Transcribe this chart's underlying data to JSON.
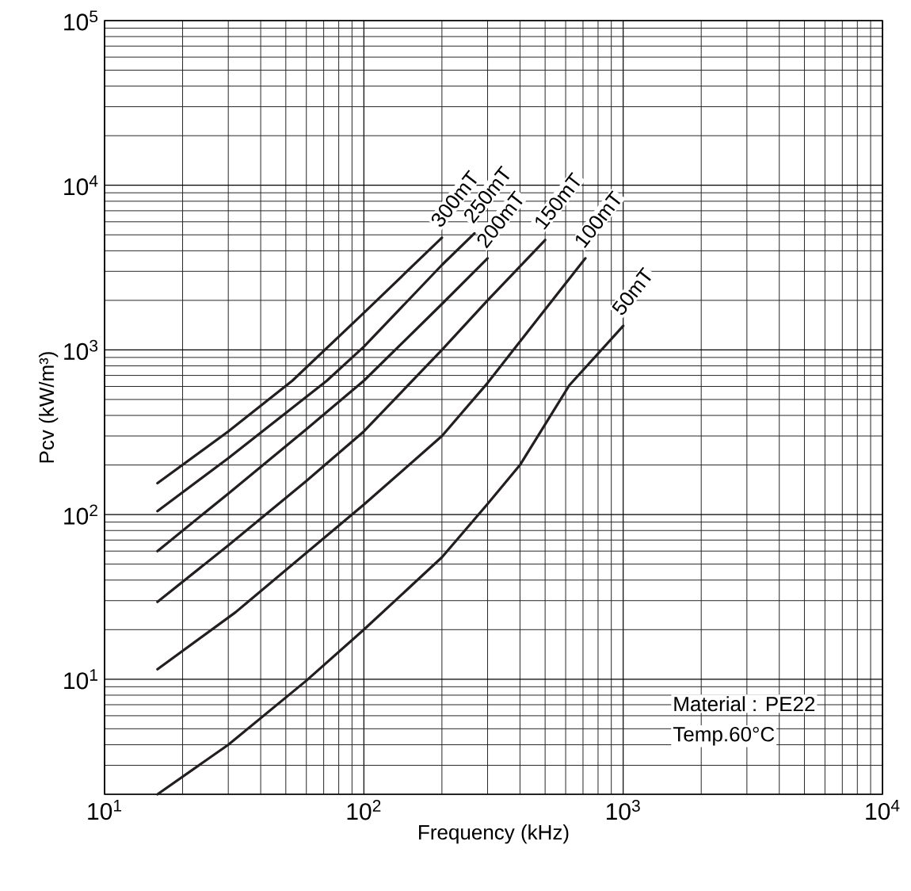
{
  "chart_data": {
    "type": "line",
    "xlabel": "Frequency (kHz)",
    "ylabel": "Pcv (kW/m³)",
    "log": "xy",
    "grid": true,
    "marker": "none",
    "line_style": "solid",
    "xlim": [
      10,
      10000
    ],
    "ylim": [
      2,
      100000
    ],
    "xticks": [
      {
        "value": 10,
        "label": "10$^{1}$"
      },
      {
        "value": 100,
        "label": "10$^{2}$"
      },
      {
        "value": 1000,
        "label": "10$^{3}$"
      },
      {
        "value": 10000,
        "label": "10$^{4}$"
      }
    ],
    "yticks": [
      {
        "value": 10,
        "label": "10$^{1}$"
      },
      {
        "value": 100,
        "label": "10$^{2}$"
      },
      {
        "value": 1000,
        "label": "10$^{3}$"
      },
      {
        "value": 10000,
        "label": "10$^{4}$"
      },
      {
        "value": 100000,
        "label": "10$^{5}$"
      }
    ],
    "series": [
      {
        "name": "300mT",
        "color": "#231f20",
        "x": [
          16,
          30,
          53,
          100,
          200
        ],
        "values": [
          155,
          320,
          650,
          1680,
          4800
        ]
      },
      {
        "name": "250mT",
        "color": "#231f20",
        "x": [
          16,
          30,
          72,
          100,
          200,
          267
        ],
        "values": [
          105,
          220,
          650,
          1045,
          3280,
          5100
        ]
      },
      {
        "name": "200mT",
        "color": "#231f20",
        "x": [
          16,
          30,
          60,
          100,
          200,
          300
        ],
        "values": [
          60,
          134,
          330,
          650,
          1900,
          3600
        ]
      },
      {
        "name": "150mT",
        "color": "#231f20",
        "x": [
          16,
          30,
          60,
          100,
          200,
          300,
          500
        ],
        "values": [
          29.5,
          65,
          160,
          320,
          1000,
          2000,
          4650
        ]
      },
      {
        "name": "100mT",
        "color": "#231f20",
        "x": [
          16,
          32,
          100,
          200,
          300,
          430,
          715
        ],
        "values": [
          11.5,
          25.5,
          115,
          300,
          630,
          1300,
          3600
        ]
      },
      {
        "name": "50mT",
        "color": "#231f20",
        "x": [
          16,
          30,
          60,
          100,
          200,
          300,
          400,
          620,
          1000
        ],
        "values": [
          2,
          4,
          9.8,
          20,
          55,
          116,
          200,
          610,
          1400
        ]
      }
    ],
    "annotations": [
      "Material : PE22",
      "Temp.60°C"
    ]
  }
}
